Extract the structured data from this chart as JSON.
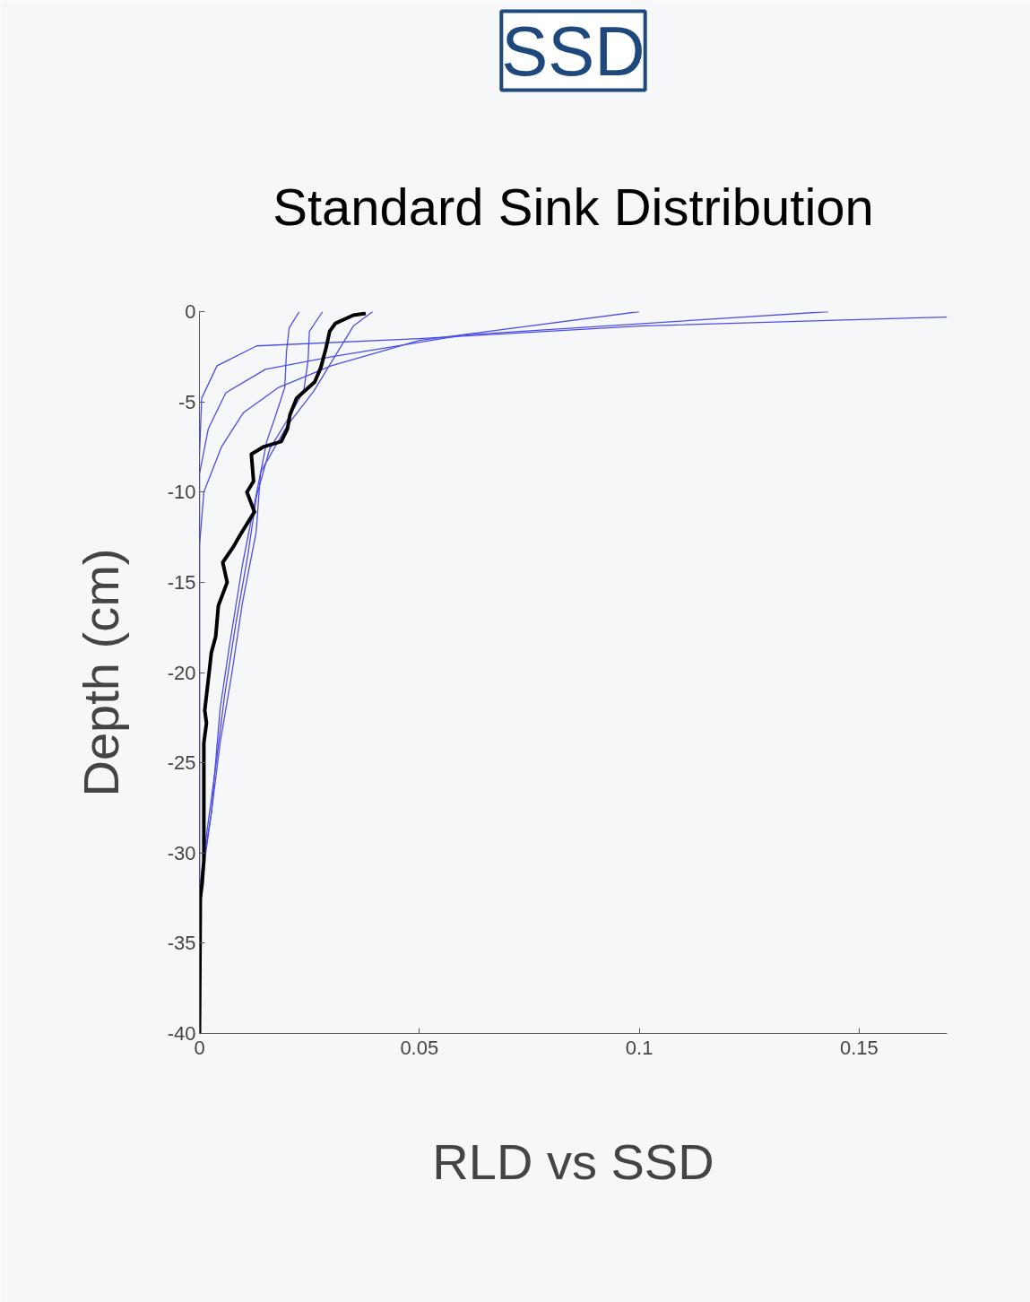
{
  "chart_data": {
    "type": "line",
    "title": "SSD",
    "subtitle": "Standard Sink Distribution",
    "xlabel": "RLD vs SSD",
    "ylabel": "Depth (cm)",
    "xlim": [
      0,
      0.17
    ],
    "ylim": [
      -40,
      0
    ],
    "xticks": [
      0,
      0.05,
      0.1,
      0.15
    ],
    "yticks": [
      -40,
      -35,
      -30,
      -25,
      -20,
      -15,
      -10,
      -5,
      0
    ],
    "grid": false,
    "marker": "none",
    "line_style": "solid",
    "series": [
      {
        "color": "#4d4de6",
        "x": [
          0.17,
          0.1,
          0.05,
          0.013,
          0.004,
          0.0005,
          0,
          0
        ],
        "values": [
          -0.3,
          -0.8,
          -1.5,
          -1.9,
          -3,
          -4.8,
          -8,
          -40
        ]
      },
      {
        "color": "#4d4de6",
        "x": [
          0.143,
          0.06,
          0.03,
          0.015,
          0.006,
          0.002,
          0,
          0
        ],
        "values": [
          0,
          -1.3,
          -2.5,
          -3.2,
          -4.5,
          -6.5,
          -9,
          -40
        ]
      },
      {
        "color": "#4d4de6",
        "x": [
          0.1,
          0.05,
          0.03,
          0.018,
          0.01,
          0.005,
          0.001,
          0,
          0
        ],
        "values": [
          0,
          -1.6,
          -3,
          -4.2,
          -5.6,
          -7.5,
          -10,
          -13,
          -40
        ]
      },
      {
        "color": "#4d4de6",
        "x": [
          0.0227,
          0.0204,
          0.0198,
          0.0194,
          0.0174,
          0.0153,
          0.0123,
          0.0098,
          0.0067,
          0.0047,
          0.0027,
          0.0012,
          0,
          0
        ],
        "values": [
          0,
          -0.9,
          -2.2,
          -4.2,
          -5.7,
          -7.2,
          -10.9,
          -14,
          -18.7,
          -22,
          -27.8,
          -30.4,
          -33,
          -40
        ]
      },
      {
        "color": "#4d4de6",
        "x": [
          0.028,
          0.025,
          0.0247,
          0.0237,
          0.02,
          0.016,
          0.013,
          0.011,
          0.0082,
          0.0057,
          0.0037,
          0.0016,
          0,
          0
        ],
        "values": [
          0,
          -1.1,
          -2.7,
          -4.4,
          -6,
          -7.6,
          -10.2,
          -13.5,
          -17.4,
          -21.3,
          -25.2,
          -29,
          -32,
          -40
        ]
      },
      {
        "color": "#4d4de6",
        "x": [
          0.0394,
          0.035,
          0.031,
          0.026,
          0.02,
          0.0139,
          0.0129,
          0.0098,
          0.0074,
          0.0047,
          0.0027,
          0.0006,
          0,
          0
        ],
        "values": [
          0,
          -0.8,
          -2.4,
          -4.4,
          -6.3,
          -8.9,
          -12.2,
          -16.1,
          -20,
          -23.9,
          -27.8,
          -31,
          -33.6,
          -40
        ]
      },
      {
        "color": "#000000",
        "x": [
          0.0378,
          0.035,
          0.0309,
          0.0296,
          0.0288,
          0.0276,
          0.0262,
          0.0221,
          0.0206,
          0.02,
          0.0186,
          0.0145,
          0.0118,
          0.0123,
          0.0108,
          0.0125,
          0.0092,
          0.0078,
          0.0053,
          0.0063,
          0.0043,
          0.0037,
          0.0027,
          0.0022,
          0.0012,
          0.0016,
          0.001,
          0.001,
          0.001,
          0.0006,
          0.0002,
          0
        ],
        "values": [
          -0.1,
          -0.2,
          -0.65,
          -1.1,
          -2,
          -3.1,
          -3.9,
          -4.8,
          -5.7,
          -6.5,
          -7.2,
          -7.5,
          -7.9,
          -9.4,
          -10,
          -11.1,
          -12.4,
          -13,
          -13.9,
          -15,
          -16.3,
          -18,
          -18.9,
          -20,
          -22.1,
          -22.8,
          -23.9,
          -27.1,
          -30.4,
          -31.7,
          -32.5,
          -40
        ]
      }
    ]
  }
}
